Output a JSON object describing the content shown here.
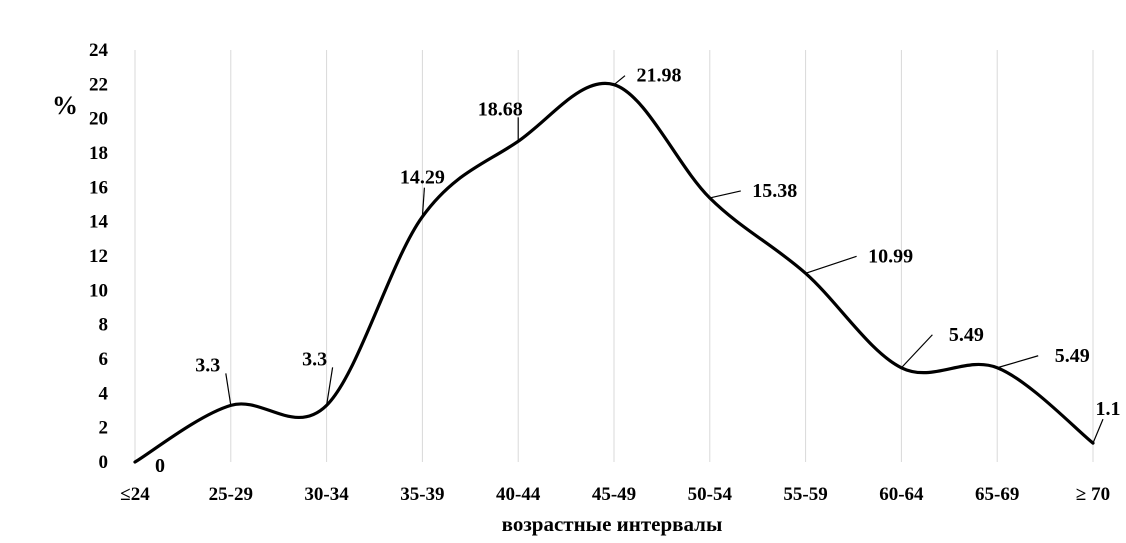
{
  "chart_data": {
    "type": "line",
    "title": "",
    "xlabel": "возрастные интервалы",
    "ylabel": "%",
    "categories": [
      "≤24",
      "25-29",
      "30-34",
      "35-39",
      "40-44",
      "45-49",
      "50-54",
      "55-59",
      "60-64",
      "65-69",
      "≥ 70"
    ],
    "y_ticks": [
      "0",
      "2",
      "4",
      "6",
      "8",
      "10",
      "12",
      "14",
      "16",
      "18",
      "20",
      "22",
      "24"
    ],
    "ylim": [
      0,
      24
    ],
    "grid": "vertical",
    "series": [
      {
        "values": [
          0,
          3.3,
          3.3,
          14.29,
          18.68,
          21.98,
          15.38,
          10.99,
          5.49,
          5.49,
          1.1
        ],
        "labels": [
          "0",
          "3.3",
          "3.3",
          "14.29",
          "18.68",
          "21.98",
          "15.38",
          "10.99",
          "5.49",
          "5.49",
          "1.1"
        ],
        "color": "#000000"
      }
    ]
  }
}
